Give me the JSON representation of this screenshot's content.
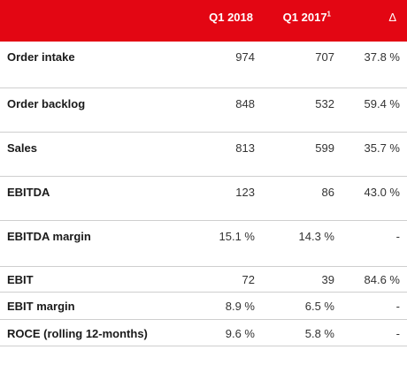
{
  "table": {
    "header": {
      "col1": "Q1 2018",
      "col2": "Q1 2017",
      "col2_footnote": "1",
      "col3": "Δ"
    },
    "rows": [
      {
        "label": "Order intake",
        "q1_2018": "974",
        "q1_2017": "707",
        "delta": "37.8 %"
      },
      {
        "label": "Order backlog",
        "q1_2018": "848",
        "q1_2017": "532",
        "delta": "59.4 %"
      },
      {
        "label": "Sales",
        "q1_2018": "813",
        "q1_2017": "599",
        "delta": "35.7 %"
      },
      {
        "label": "EBITDA",
        "q1_2018": "123",
        "q1_2017": "86",
        "delta": "43.0 %"
      },
      {
        "label": "EBITDA margin",
        "q1_2018": "15.1 %",
        "q1_2017": "14.3 %",
        "delta": "-"
      },
      {
        "label": "EBIT",
        "q1_2018": "72",
        "q1_2017": "39",
        "delta": "84.6 %"
      },
      {
        "label": "EBIT margin",
        "q1_2018": "8.9 %",
        "q1_2017": "6.5 %",
        "delta": "-"
      },
      {
        "label": "ROCE (rolling 12-months)",
        "q1_2018": "9.6 %",
        "q1_2017": "5.8 %",
        "delta": "-"
      }
    ]
  },
  "colors": {
    "header_bg": "#e30613",
    "header_text": "#ffffff",
    "divider": "#cfcfcf"
  }
}
